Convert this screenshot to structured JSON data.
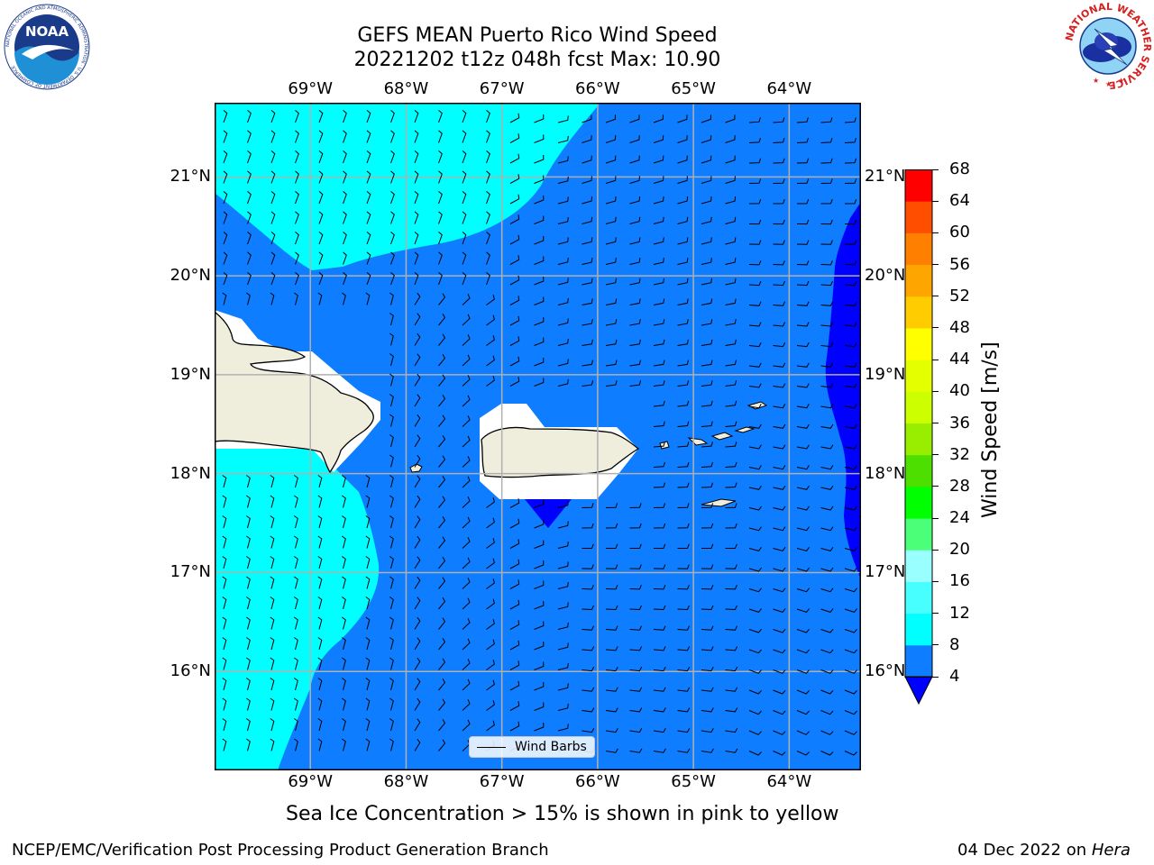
{
  "title": {
    "line1": "GEFS MEAN Puerto Rico Wind Speed",
    "line2": "20221202 t12z 048h fcst   Max: 10.90"
  },
  "map": {
    "lon_ticks": [
      "69°W",
      "68°W",
      "67°W",
      "66°W",
      "65°W",
      "64°W"
    ],
    "lat_ticks": [
      "21°N",
      "20°N",
      "19°N",
      "18°N",
      "17°N",
      "16°N"
    ],
    "extent": {
      "lon_min": -70.0,
      "lon_max": -63.25,
      "lat_min": 15.0,
      "lat_max": 21.75
    },
    "legend_label": "Wind Barbs",
    "colors": {
      "band_4_8": "#0f7dff",
      "band_8_12": "#00ffff",
      "below_4": "#0000ff",
      "land": "#efeedd",
      "mask": "#ffffff"
    }
  },
  "colorbar": {
    "label": "Wind Speed [m/s]",
    "ticks": [
      "4",
      "8",
      "12",
      "16",
      "20",
      "24",
      "28",
      "32",
      "36",
      "40",
      "44",
      "48",
      "52",
      "56",
      "60",
      "64",
      "68"
    ],
    "colors": [
      "#0f7dff",
      "#00ffff",
      "#48ffff",
      "#99ffff",
      "#4cff78",
      "#00ff00",
      "#4ddf00",
      "#99ee00",
      "#ccff00",
      "#e4ff00",
      "#ffff00",
      "#ffcc00",
      "#ffa500",
      "#ff8000",
      "#ff4e00",
      "#ff0000"
    ],
    "extend_color": "#0000ff"
  },
  "caption": "Sea Ice Concentration > 15% is shown in pink to yellow",
  "footer": {
    "left": "NCEP/EMC/Verification Post Processing Product Generation Branch",
    "date": "04 Dec 2022 on ",
    "machine": "Hera"
  },
  "logos": {
    "noaa_text": "NOAA",
    "noaa_ring": "NATIONAL OCEANIC AND ATMOSPHERIC ADMINISTRATION · U.S. DEPARTMENT OF COMMERCE",
    "nws_ring": "NATIONAL WEATHER SERVICE"
  }
}
